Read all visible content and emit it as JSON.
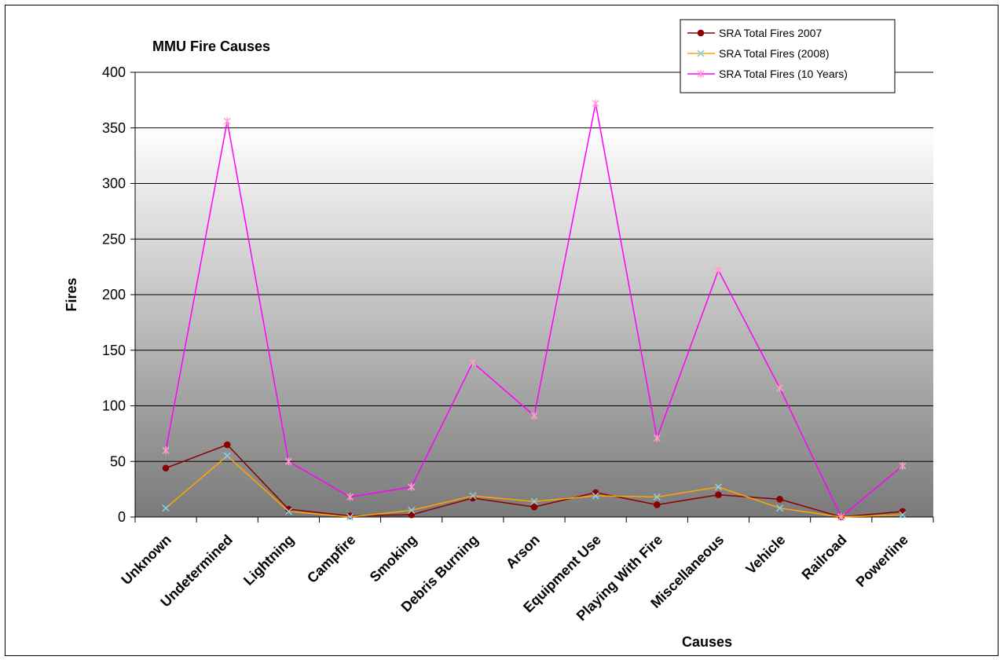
{
  "chart_data": {
    "type": "line",
    "title": "MMU Fire Causes",
    "xlabel": "Causes",
    "ylabel": "Fires",
    "ylim": [
      0,
      400
    ],
    "yticks": [
      0,
      50,
      100,
      150,
      200,
      250,
      300,
      350,
      400
    ],
    "grid": true,
    "legend_position": "top-right",
    "categories": [
      "Unknown",
      "Undetermined",
      "Lightning",
      "Campfire",
      "Smoking",
      "Debris Burning",
      "Arson",
      "Equipment Use",
      "Playing With Fire",
      "Miscellaneous",
      "Vehicle",
      "Railroad",
      "Powerline"
    ],
    "series": [
      {
        "name": "SRA Total Fires 2007",
        "color": "#8b0000",
        "marker": "circle",
        "values": [
          44,
          65,
          7,
          1,
          2,
          17,
          9,
          22,
          11,
          20,
          16,
          0,
          5
        ]
      },
      {
        "name": "SRA Total Fires (2008)",
        "color": "#ffa500",
        "marker": "x",
        "values": [
          8,
          55,
          5,
          0,
          6,
          19,
          14,
          19,
          18,
          27,
          8,
          0,
          2
        ]
      },
      {
        "name": "SRA Total Fires (10 Years)",
        "color": "#ff00ff",
        "marker": "star",
        "values": [
          60,
          356,
          50,
          18,
          27,
          139,
          91,
          372,
          71,
          222,
          116,
          0,
          46
        ]
      }
    ]
  }
}
